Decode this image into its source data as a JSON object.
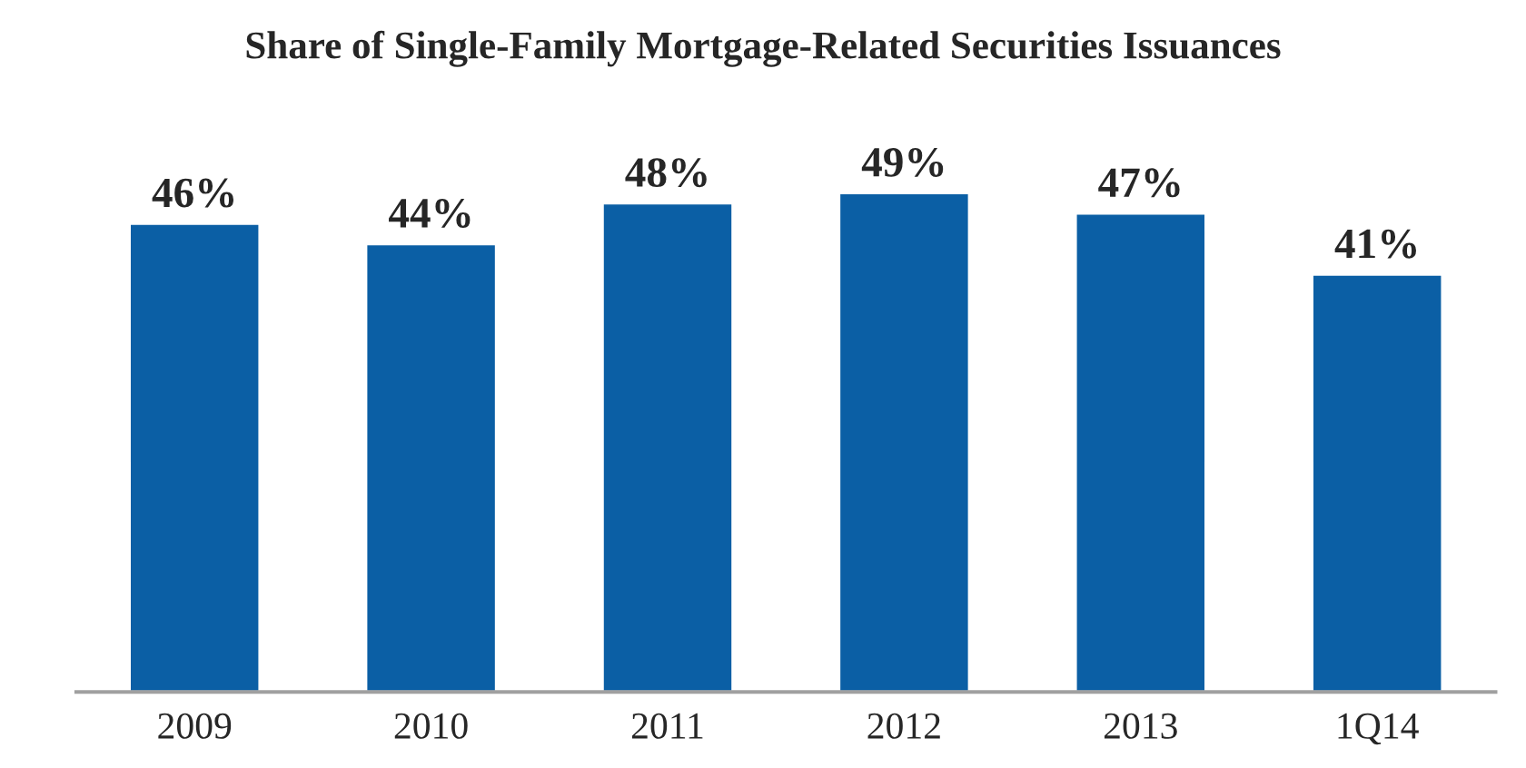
{
  "chart_data": {
    "type": "bar",
    "title": "Share of Single-Family Mortgage-Related Securities Issuances",
    "categories": [
      "2009",
      "2010",
      "2011",
      "2012",
      "2013",
      "1Q14"
    ],
    "values": [
      46,
      44,
      48,
      49,
      47,
      41
    ],
    "value_labels": [
      "46%",
      "44%",
      "48%",
      "49%",
      "47%",
      "41%"
    ],
    "color": "#0b5fa5",
    "tick_labels": "x",
    "grid": false,
    "legend": false
  }
}
